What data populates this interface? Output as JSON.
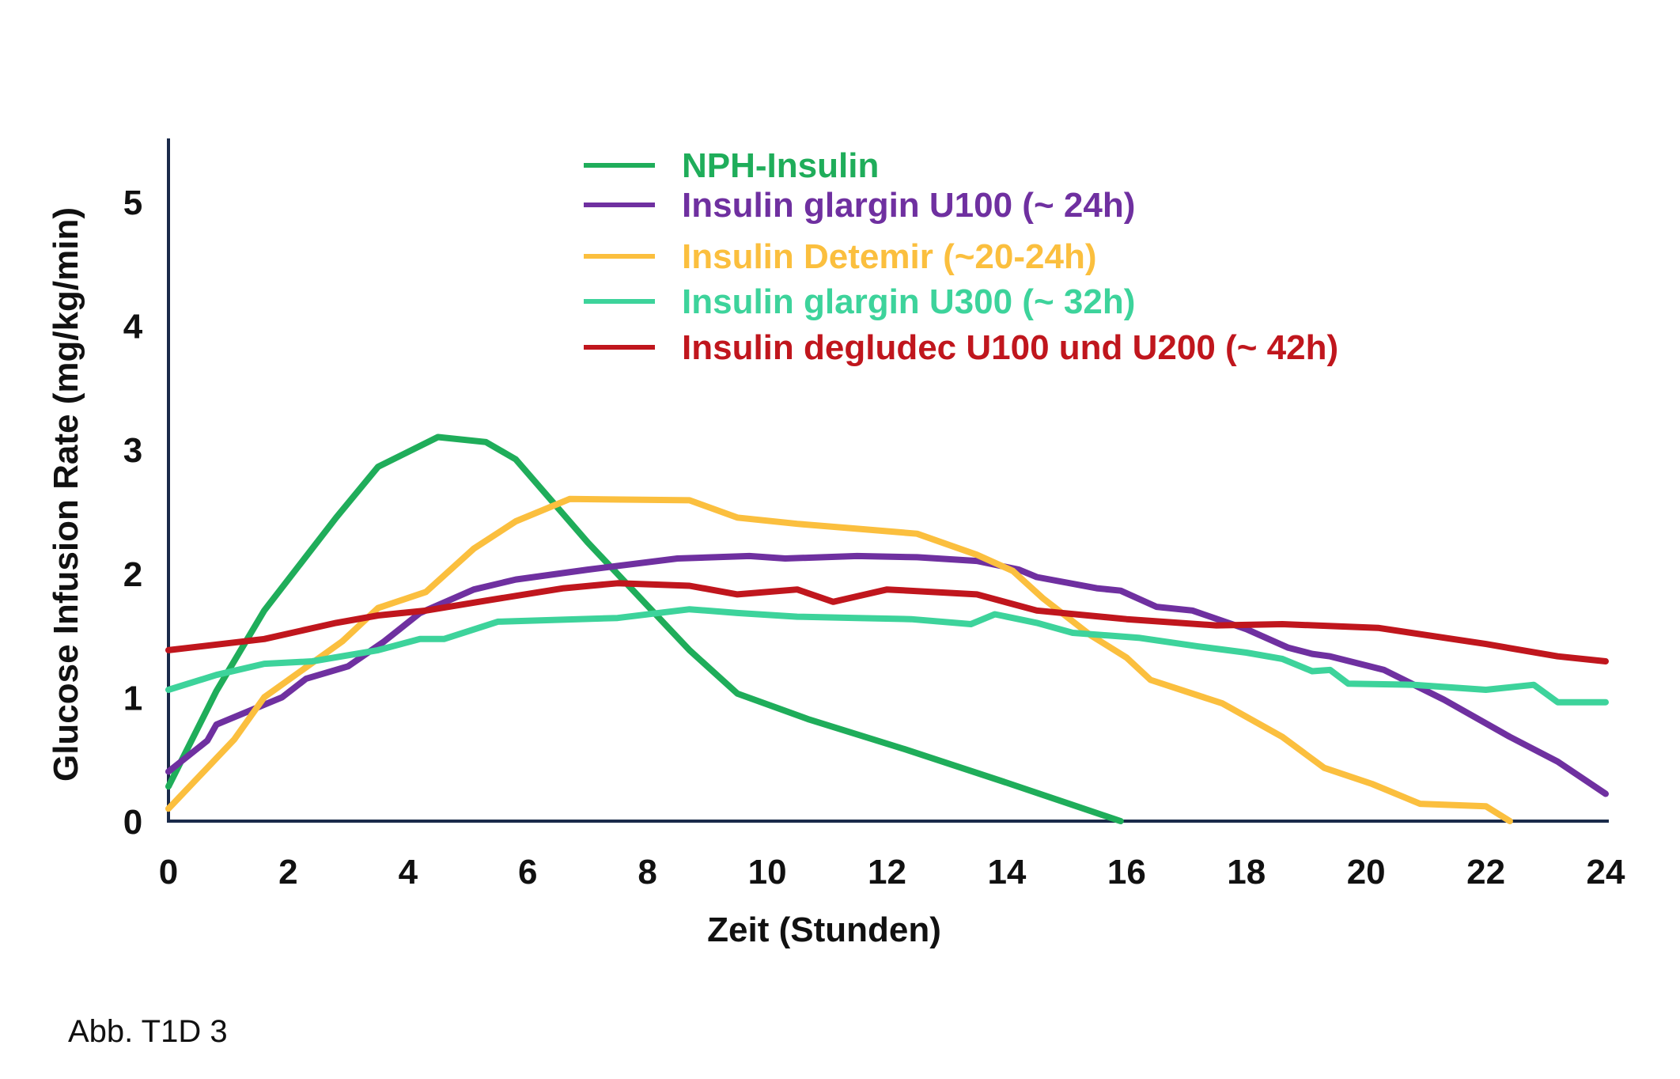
{
  "caption": "Abb. T1D 3",
  "colors": {
    "nph": "#1fad5a",
    "glargin_u100": "#6f30a0",
    "detemir": "#fbbf3e",
    "glargin_u300": "#3dd39b",
    "degludec": "#c0161d",
    "axis": "#1a2a4a"
  },
  "chart_data": {
    "type": "line",
    "xlabel": "Zeit (Stunden)",
    "ylabel": "Glucose Infusion Rate (mg/kg/min)",
    "xlim": [
      0,
      24
    ],
    "ylim": [
      0,
      5.5
    ],
    "xticks": [
      "0",
      "2",
      "4",
      "6",
      "8",
      "10",
      "12",
      "14",
      "16",
      "18",
      "20",
      "22",
      "24"
    ],
    "yticks": [
      "0",
      "1",
      "2",
      "3",
      "4",
      "5"
    ],
    "grid": false,
    "legend_position": "top-center",
    "series": [
      {
        "name": "NPH-Insulin",
        "color": "#1fad5a",
        "x": [
          0,
          0.8,
          1.6,
          2.8,
          3.5,
          4.5,
          5.3,
          5.8,
          7.0,
          8.7,
          9.5,
          10.7,
          12.3,
          14.0,
          15.9
        ],
        "y": [
          0.28,
          1.05,
          1.7,
          2.45,
          2.86,
          3.1,
          3.06,
          2.92,
          2.25,
          1.38,
          1.03,
          0.82,
          0.58,
          0.31,
          0.0
        ]
      },
      {
        "name": "Insulin glargin U100 (~ 24h)",
        "color": "#6f30a0",
        "x": [
          0,
          0.65,
          0.8,
          1.9,
          2.3,
          3.0,
          3.6,
          4.2,
          5.1,
          5.8,
          7.0,
          8.5,
          9.7,
          10.3,
          11.5,
          12.5,
          13.5,
          14.2,
          14.5,
          15.5,
          15.9,
          16.5,
          17.1,
          18.0,
          18.7,
          19.1,
          19.4,
          20.3,
          21.3,
          22.4,
          23.2,
          24.0
        ],
        "y": [
          0.4,
          0.65,
          0.78,
          1.0,
          1.15,
          1.25,
          1.45,
          1.68,
          1.87,
          1.95,
          2.03,
          2.12,
          2.14,
          2.12,
          2.14,
          2.13,
          2.1,
          2.03,
          1.97,
          1.88,
          1.86,
          1.73,
          1.7,
          1.55,
          1.4,
          1.35,
          1.33,
          1.22,
          0.98,
          0.68,
          0.48,
          0.22
        ]
      },
      {
        "name": "Insulin Detemir (~20-24h)",
        "color": "#fbbf3e",
        "x": [
          0,
          1.1,
          1.6,
          2.9,
          3.5,
          4.3,
          5.1,
          5.8,
          6.7,
          8.7,
          9.5,
          10.5,
          11.5,
          12.5,
          13.5,
          14.1,
          14.6,
          15.4,
          16.0,
          16.4,
          17.6,
          18.6,
          19.3,
          20.1,
          20.9,
          22.0,
          22.4
        ],
        "y": [
          0.1,
          0.66,
          1.0,
          1.45,
          1.72,
          1.85,
          2.2,
          2.42,
          2.6,
          2.59,
          2.45,
          2.4,
          2.36,
          2.32,
          2.15,
          2.02,
          1.8,
          1.5,
          1.32,
          1.14,
          0.95,
          0.68,
          0.43,
          0.3,
          0.14,
          0.12,
          0.0
        ]
      },
      {
        "name": "Insulin glargin U300 (~ 32h)",
        "color": "#3dd39b",
        "x": [
          0,
          0.8,
          1.6,
          2.4,
          3.5,
          4.2,
          4.6,
          5.5,
          7.5,
          8.7,
          9.5,
          10.5,
          11.5,
          12.4,
          13.4,
          13.8,
          14.5,
          15.1,
          16.2,
          17.2,
          18.0,
          18.6,
          19.1,
          19.4,
          19.7,
          20.8,
          22.0,
          22.8,
          23.0,
          23.2,
          24.0
        ],
        "y": [
          1.06,
          1.18,
          1.27,
          1.29,
          1.38,
          1.47,
          1.47,
          1.61,
          1.64,
          1.71,
          1.68,
          1.65,
          1.64,
          1.63,
          1.59,
          1.67,
          1.6,
          1.52,
          1.48,
          1.41,
          1.36,
          1.31,
          1.21,
          1.22,
          1.11,
          1.1,
          1.06,
          1.1,
          1.03,
          0.96,
          0.96
        ]
      },
      {
        "name": "Insulin degludec U100 und U200 (~ 42h)",
        "color": "#c0161d",
        "x": [
          0,
          1.6,
          2.8,
          3.5,
          4.3,
          5.3,
          6.6,
          7.5,
          8.7,
          9.5,
          10.5,
          11.1,
          12.0,
          13.5,
          14.5,
          16.0,
          17.5,
          18.6,
          20.2,
          22.0,
          23.2,
          24.0
        ],
        "y": [
          1.38,
          1.47,
          1.6,
          1.66,
          1.7,
          1.78,
          1.88,
          1.92,
          1.9,
          1.83,
          1.87,
          1.77,
          1.87,
          1.83,
          1.7,
          1.63,
          1.58,
          1.59,
          1.56,
          1.43,
          1.33,
          1.29
        ]
      }
    ]
  }
}
